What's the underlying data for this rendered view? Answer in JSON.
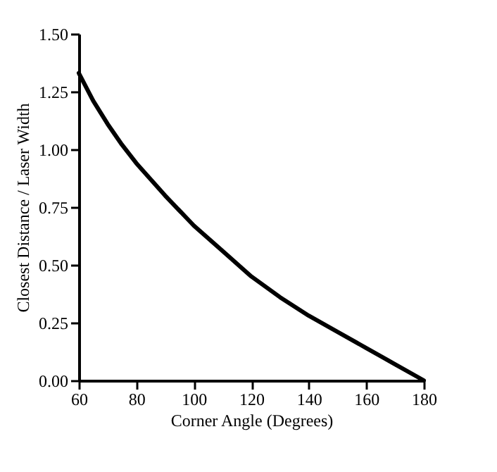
{
  "chart_data": {
    "type": "line",
    "xlabel": "Corner Angle (Degrees)",
    "ylabel": "Closest Distance / Laser Width",
    "x": [
      60,
      65,
      70,
      75,
      80,
      90,
      100,
      110,
      120,
      130,
      140,
      150,
      160,
      170,
      180
    ],
    "series": [
      {
        "color": "#000000",
        "values": [
          1.33,
          1.21,
          1.11,
          1.02,
          0.94,
          0.8,
          0.67,
          0.56,
          0.45,
          0.36,
          0.28,
          0.21,
          0.14,
          0.07,
          0.0
        ]
      }
    ],
    "xlim": [
      60,
      180
    ],
    "xticks": [
      60,
      80,
      100,
      120,
      140,
      160,
      180
    ],
    "ylim": [
      0,
      1.5
    ],
    "yticks": [
      {
        "value": 0,
        "label": "0.00"
      },
      {
        "value": 0.25,
        "label": "0.25"
      },
      {
        "value": 0.5,
        "label": "0.50"
      },
      {
        "value": 0.75,
        "label": "0.75"
      },
      {
        "value": 1,
        "label": "1.00"
      },
      {
        "value": 1.25,
        "label": "1.25"
      },
      {
        "value": 1.5,
        "label": "1.50"
      }
    ],
    "grid": false,
    "marker": "none",
    "line_style": "solid"
  }
}
